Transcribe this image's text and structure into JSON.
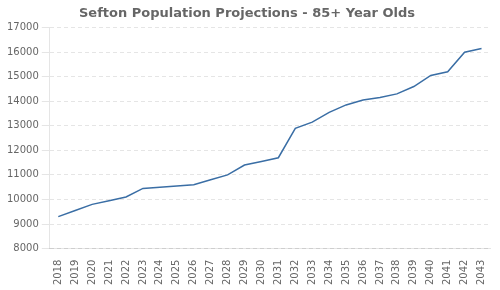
{
  "chart_data": {
    "type": "line",
    "title": "Sefton Population Projections - 85+ Year Olds",
    "x": [
      2018,
      2019,
      2020,
      2021,
      2022,
      2023,
      2024,
      2025,
      2026,
      2027,
      2028,
      2029,
      2030,
      2031,
      2032,
      2033,
      2034,
      2035,
      2036,
      2037,
      2038,
      2039,
      2040,
      2041,
      2042,
      2043
    ],
    "values": [
      9300,
      9550,
      9800,
      9950,
      10100,
      10450,
      10500,
      10550,
      10600,
      10800,
      11000,
      11400,
      11550,
      11700,
      12900,
      13150,
      13550,
      13850,
      14050,
      14150,
      14300,
      14600,
      15050,
      15200,
      16000,
      16150
    ],
    "color": "#3A6EA5",
    "xlim": [
      2017.5,
      2043.5
    ],
    "xticks": [
      2018,
      2019,
      2020,
      2021,
      2022,
      2023,
      2024,
      2025,
      2026,
      2027,
      2028,
      2029,
      2030,
      2031,
      2032,
      2033,
      2034,
      2035,
      2036,
      2037,
      2038,
      2039,
      2040,
      2041,
      2042,
      2043
    ],
    "ylim": [
      8000,
      17000
    ],
    "yticks": [
      8000,
      9000,
      10000,
      11000,
      12000,
      13000,
      14000,
      15000,
      16000,
      17000
    ],
    "grid": "y"
  }
}
